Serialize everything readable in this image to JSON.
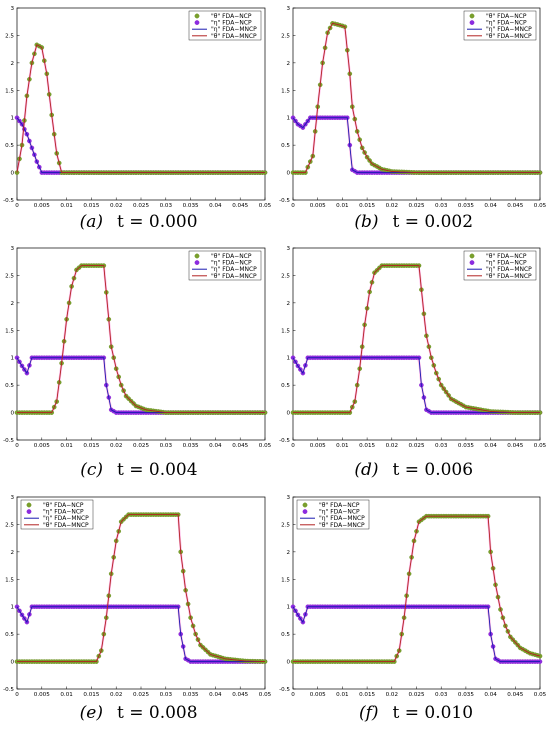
{
  "figure": {
    "legend_labels": [
      "\"θ\" FDA−NCP",
      "\"η\" FDA−NCP",
      "\"η\" FDA−MNCP",
      "\"θ\" FDA−MNCP"
    ]
  },
  "colors": {
    "theta_marker_fill": "#7aa02c",
    "theta_marker_edge": "#6b8e23",
    "eta_marker_fill": "#8a2be2",
    "eta_marker_edge": "#9932cc",
    "theta_line": "#b22222",
    "eta_line": "#1a1ab0",
    "pink_trace": "#ff66cc"
  },
  "chart_data": [
    {
      "type": "line",
      "panel_letter": "(a)",
      "time_label": "t = 0.000",
      "t": 0.0,
      "xlim": [
        0,
        0.05
      ],
      "ylim": [
        -0.5,
        3
      ],
      "xticks": [
        "0",
        "0.005",
        "0.01",
        "0.015",
        "0.02",
        "0.025",
        "0.03",
        "0.035",
        "0.04",
        "0.045",
        "0.05"
      ],
      "yticks": [
        "-0.5",
        "0",
        "0.5",
        "1",
        "1.5",
        "2",
        "2.5",
        "3"
      ],
      "legend_position": "top-right",
      "series": [
        {
          "name": "\"θ\" FDA−NCP",
          "x": [
            0,
            0.001,
            0.002,
            0.003,
            0.004,
            0.005,
            0.006,
            0.007,
            0.008,
            0.009,
            0.05
          ],
          "y": [
            0,
            0.5,
            1.4,
            2.0,
            2.33,
            2.28,
            1.8,
            1.05,
            0.35,
            0,
            0
          ]
        },
        {
          "name": "\"η\" FDA−NCP",
          "x": [
            0,
            0.001,
            0.002,
            0.003,
            0.004,
            0.005,
            0.05
          ],
          "y": [
            1.0,
            0.88,
            0.7,
            0.45,
            0.2,
            0,
            0
          ]
        },
        {
          "name": "\"η\" FDA−MNCP",
          "x": [
            0,
            0.001,
            0.002,
            0.003,
            0.004,
            0.005,
            0.05
          ],
          "y": [
            1.0,
            0.88,
            0.7,
            0.45,
            0.2,
            0,
            0
          ]
        },
        {
          "name": "\"θ\" FDA−MNCP",
          "x": [
            0,
            0.001,
            0.002,
            0.003,
            0.004,
            0.005,
            0.006,
            0.007,
            0.008,
            0.009,
            0.05
          ],
          "y": [
            0,
            0.5,
            1.4,
            2.0,
            2.33,
            2.28,
            1.8,
            1.05,
            0.35,
            0,
            0
          ]
        }
      ]
    },
    {
      "type": "line",
      "panel_letter": "(b)",
      "time_label": "t = 0.002",
      "t": 0.002,
      "xlim": [
        0,
        0.05
      ],
      "ylim": [
        -0.5,
        3
      ],
      "xticks": [
        "0",
        "0.005",
        "0.01",
        "0.015",
        "0.02",
        "0.025",
        "0.03",
        "0.035",
        "0.04",
        "0.045",
        "0.05"
      ],
      "yticks": [
        "-0.5",
        "0",
        "0.5",
        "1",
        "1.5",
        "2",
        "2.5",
        "3"
      ],
      "legend_position": "top-right",
      "series": [
        {
          "name": "\"θ\" FDA−NCP",
          "x": [
            0,
            0.0025,
            0.004,
            0.005,
            0.006,
            0.007,
            0.008,
            0.009,
            0.0105,
            0.0115,
            0.012,
            0.013,
            0.014,
            0.015,
            0.016,
            0.018,
            0.02,
            0.025,
            0.05
          ],
          "y": [
            0,
            0,
            0.3,
            1.2,
            2.0,
            2.55,
            2.72,
            2.7,
            2.66,
            1.8,
            1.2,
            0.75,
            0.45,
            0.28,
            0.16,
            0.06,
            0.02,
            0,
            0
          ]
        },
        {
          "name": "\"η\" FDA−NCP",
          "x": [
            0,
            0.001,
            0.002,
            0.0035,
            0.011,
            0.0115,
            0.012,
            0.013,
            0.05
          ],
          "y": [
            1.0,
            0.88,
            0.82,
            1.0,
            1.0,
            0.5,
            0.05,
            0,
            0
          ]
        },
        {
          "name": "\"η\" FDA−MNCP",
          "x": [
            0,
            0.001,
            0.002,
            0.0035,
            0.011,
            0.0115,
            0.012,
            0.013,
            0.05
          ],
          "y": [
            1.0,
            0.88,
            0.82,
            1.0,
            1.0,
            0.5,
            0.05,
            0,
            0
          ]
        },
        {
          "name": "\"θ\" FDA−MNCP",
          "x": [
            0,
            0.0025,
            0.004,
            0.005,
            0.006,
            0.007,
            0.008,
            0.009,
            0.0105,
            0.0115,
            0.012,
            0.013,
            0.014,
            0.015,
            0.016,
            0.018,
            0.02,
            0.025,
            0.05
          ],
          "y": [
            0,
            0,
            0.3,
            1.2,
            2.0,
            2.55,
            2.72,
            2.7,
            2.66,
            1.8,
            1.2,
            0.75,
            0.45,
            0.28,
            0.16,
            0.06,
            0.02,
            0,
            0
          ]
        }
      ]
    },
    {
      "type": "line",
      "panel_letter": "(c)",
      "time_label": "t = 0.004",
      "t": 0.004,
      "xlim": [
        0,
        0.05
      ],
      "ylim": [
        -0.5,
        3
      ],
      "xticks": [
        "0",
        "0.005",
        "0.01",
        "0.015",
        "0.02",
        "0.025",
        "0.03",
        "0.035",
        "0.04",
        "0.045",
        "0.05"
      ],
      "yticks": [
        "-0.5",
        "0",
        "0.5",
        "1",
        "1.5",
        "2",
        "2.5",
        "3"
      ],
      "legend_position": "top-right",
      "series": [
        {
          "name": "\"θ\" FDA−NCP",
          "x": [
            0,
            0.007,
            0.008,
            0.009,
            0.01,
            0.011,
            0.012,
            0.013,
            0.0175,
            0.0185,
            0.019,
            0.02,
            0.021,
            0.022,
            0.024,
            0.026,
            0.03,
            0.05
          ],
          "y": [
            0,
            0,
            0.2,
            0.9,
            1.7,
            2.3,
            2.6,
            2.68,
            2.68,
            1.7,
            1.2,
            0.8,
            0.5,
            0.3,
            0.12,
            0.05,
            0,
            0
          ]
        },
        {
          "name": "\"η\" FDA−NCP",
          "x": [
            0,
            0.001,
            0.002,
            0.003,
            0.0175,
            0.018,
            0.019,
            0.02,
            0.05
          ],
          "y": [
            1.0,
            0.85,
            0.72,
            1.0,
            1.0,
            0.5,
            0.05,
            0,
            0
          ]
        },
        {
          "name": "\"η\" FDA−MNCP",
          "x": [
            0,
            0.001,
            0.002,
            0.003,
            0.0175,
            0.018,
            0.019,
            0.02,
            0.05
          ],
          "y": [
            1.0,
            0.85,
            0.72,
            1.0,
            1.0,
            0.5,
            0.05,
            0,
            0
          ]
        },
        {
          "name": "\"θ\" FDA−MNCP",
          "x": [
            0,
            0.007,
            0.008,
            0.009,
            0.01,
            0.011,
            0.012,
            0.013,
            0.0175,
            0.0185,
            0.019,
            0.02,
            0.021,
            0.022,
            0.024,
            0.026,
            0.03,
            0.05
          ],
          "y": [
            0,
            0,
            0.2,
            0.9,
            1.7,
            2.3,
            2.6,
            2.68,
            2.68,
            1.7,
            1.2,
            0.8,
            0.5,
            0.3,
            0.12,
            0.05,
            0,
            0
          ]
        }
      ]
    },
    {
      "type": "line",
      "panel_letter": "(d)",
      "time_label": "t = 0.006",
      "t": 0.006,
      "xlim": [
        0,
        0.05
      ],
      "ylim": [
        -0.5,
        3
      ],
      "xticks": [
        "0",
        "0.005",
        "0.01",
        "0.015",
        "0.02",
        "0.025",
        "0.03",
        "0.035",
        "0.04",
        "0.045",
        "0.05"
      ],
      "yticks": [
        "-0.5",
        "0",
        "0.5",
        "1",
        "1.5",
        "2",
        "2.5",
        "3"
      ],
      "legend_position": "top-right",
      "series": [
        {
          "name": "\"θ\" FDA−NCP",
          "x": [
            0,
            0.0115,
            0.0125,
            0.0135,
            0.0145,
            0.0155,
            0.0165,
            0.018,
            0.0255,
            0.0265,
            0.027,
            0.028,
            0.029,
            0.03,
            0.032,
            0.035,
            0.04,
            0.045,
            0.05
          ],
          "y": [
            0,
            0,
            0.2,
            0.8,
            1.6,
            2.2,
            2.55,
            2.68,
            2.68,
            1.8,
            1.4,
            1.0,
            0.72,
            0.5,
            0.25,
            0.1,
            0.02,
            0,
            0
          ]
        },
        {
          "name": "\"η\" FDA−NCP",
          "x": [
            0,
            0.001,
            0.002,
            0.003,
            0.0255,
            0.026,
            0.027,
            0.028,
            0.05
          ],
          "y": [
            1.0,
            0.85,
            0.72,
            1.0,
            1.0,
            0.5,
            0.05,
            0,
            0
          ]
        },
        {
          "name": "\"η\" FDA−MNCP",
          "x": [
            0,
            0.001,
            0.002,
            0.003,
            0.0255,
            0.026,
            0.027,
            0.028,
            0.05
          ],
          "y": [
            1.0,
            0.85,
            0.72,
            1.0,
            1.0,
            0.5,
            0.05,
            0,
            0
          ]
        },
        {
          "name": "\"θ\" FDA−MNCP",
          "x": [
            0,
            0.0115,
            0.0125,
            0.0135,
            0.0145,
            0.0155,
            0.0165,
            0.018,
            0.0255,
            0.0265,
            0.027,
            0.028,
            0.029,
            0.03,
            0.032,
            0.035,
            0.04,
            0.045,
            0.05
          ],
          "y": [
            0,
            0,
            0.2,
            0.8,
            1.6,
            2.2,
            2.55,
            2.68,
            2.68,
            1.8,
            1.4,
            1.0,
            0.72,
            0.5,
            0.25,
            0.1,
            0.02,
            0,
            0
          ]
        }
      ]
    },
    {
      "type": "line",
      "panel_letter": "(e)",
      "time_label": "t = 0.008",
      "t": 0.008,
      "xlim": [
        0,
        0.05
      ],
      "ylim": [
        -0.5,
        3
      ],
      "xticks": [
        "0",
        "0.005",
        "0.01",
        "0.015",
        "0.02",
        "0.025",
        "0.03",
        "0.035",
        "0.04",
        "0.045",
        "0.05"
      ],
      "yticks": [
        "-0.5",
        "0",
        "0.5",
        "1",
        "1.5",
        "2",
        "2.5",
        "3"
      ],
      "legend_position": "top-left",
      "series": [
        {
          "name": "\"θ\" FDA−NCP",
          "x": [
            0,
            0.016,
            0.017,
            0.018,
            0.019,
            0.02,
            0.021,
            0.0225,
            0.0325,
            0.033,
            0.034,
            0.035,
            0.036,
            0.037,
            0.039,
            0.042,
            0.046,
            0.05
          ],
          "y": [
            0,
            0,
            0.2,
            0.8,
            1.6,
            2.2,
            2.55,
            2.68,
            2.68,
            2.0,
            1.3,
            0.8,
            0.5,
            0.3,
            0.13,
            0.05,
            0.01,
            0
          ]
        },
        {
          "name": "\"η\" FDA−NCP",
          "x": [
            0,
            0.001,
            0.002,
            0.003,
            0.0325,
            0.033,
            0.034,
            0.035,
            0.05
          ],
          "y": [
            1.0,
            0.85,
            0.72,
            1.0,
            1.0,
            0.5,
            0.05,
            0,
            0
          ]
        },
        {
          "name": "\"η\" FDA−MNCP",
          "x": [
            0,
            0.001,
            0.002,
            0.003,
            0.0325,
            0.033,
            0.034,
            0.035,
            0.05
          ],
          "y": [
            1.0,
            0.85,
            0.72,
            1.0,
            1.0,
            0.5,
            0.05,
            0,
            0
          ]
        },
        {
          "name": "\"θ\" FDA−MNCP",
          "x": [
            0,
            0.016,
            0.017,
            0.018,
            0.019,
            0.02,
            0.021,
            0.0225,
            0.0325,
            0.033,
            0.034,
            0.035,
            0.036,
            0.037,
            0.039,
            0.042,
            0.046,
            0.05
          ],
          "y": [
            0,
            0,
            0.2,
            0.8,
            1.6,
            2.2,
            2.55,
            2.68,
            2.68,
            2.0,
            1.3,
            0.8,
            0.5,
            0.3,
            0.13,
            0.05,
            0.01,
            0
          ]
        }
      ]
    },
    {
      "type": "line",
      "panel_letter": "(f)",
      "time_label": "t = 0.010",
      "t": 0.01,
      "xlim": [
        0,
        0.05
      ],
      "ylim": [
        -0.5,
        3
      ],
      "xticks": [
        "0",
        "0.005",
        "0.01",
        "0.015",
        "0.02",
        "0.025",
        "0.03",
        "0.035",
        "0.04",
        "0.045",
        "0.05"
      ],
      "yticks": [
        "-0.5",
        "0",
        "0.5",
        "1",
        "1.5",
        "2",
        "2.5",
        "3"
      ],
      "legend_position": "top-left",
      "series": [
        {
          "name": "\"θ\" FDA−NCP",
          "x": [
            0,
            0.0205,
            0.0215,
            0.0225,
            0.0235,
            0.0245,
            0.0255,
            0.027,
            0.0395,
            0.04,
            0.041,
            0.042,
            0.043,
            0.044,
            0.046,
            0.048,
            0.05
          ],
          "y": [
            0,
            0,
            0.2,
            0.8,
            1.6,
            2.2,
            2.55,
            2.65,
            2.65,
            2.0,
            1.4,
            0.95,
            0.65,
            0.45,
            0.25,
            0.15,
            0.1
          ]
        },
        {
          "name": "\"η\" FDA−NCP",
          "x": [
            0,
            0.001,
            0.002,
            0.003,
            0.0395,
            0.04,
            0.041,
            0.042,
            0.05
          ],
          "y": [
            1.0,
            0.85,
            0.72,
            1.0,
            1.0,
            0.5,
            0.05,
            0,
            0
          ]
        },
        {
          "name": "\"η\" FDA−MNCP",
          "x": [
            0,
            0.001,
            0.002,
            0.003,
            0.0395,
            0.04,
            0.041,
            0.042,
            0.05
          ],
          "y": [
            1.0,
            0.85,
            0.72,
            1.0,
            1.0,
            0.5,
            0.05,
            0,
            0
          ]
        },
        {
          "name": "\"θ\" FDA−MNCP",
          "x": [
            0,
            0.0205,
            0.0215,
            0.0225,
            0.0235,
            0.0245,
            0.0255,
            0.027,
            0.0395,
            0.04,
            0.041,
            0.042,
            0.043,
            0.044,
            0.046,
            0.048,
            0.05
          ],
          "y": [
            0,
            0,
            0.2,
            0.8,
            1.6,
            2.2,
            2.55,
            2.65,
            2.65,
            2.0,
            1.4,
            0.95,
            0.65,
            0.45,
            0.25,
            0.15,
            0.1
          ]
        }
      ]
    }
  ]
}
